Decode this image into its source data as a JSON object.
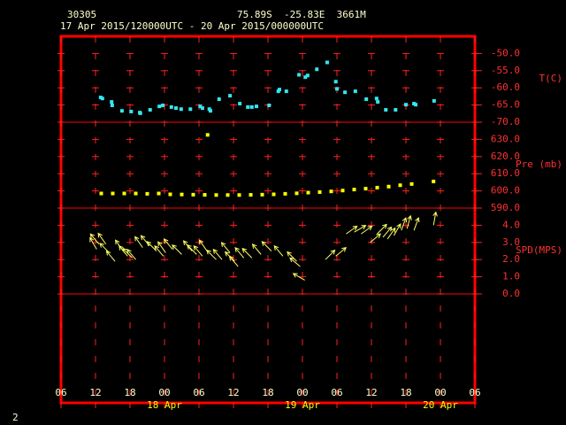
{
  "header": {
    "station": "30305",
    "location": "75.89S  -25.83E  3661M",
    "period": "17 Apr 2015/120000UTC - 20 Apr 2015/000000UTC",
    "page": "2"
  },
  "chart_data": {
    "type": "meteogram",
    "xlim": [
      6,
      78
    ],
    "xticks": [
      {
        "value": 6,
        "label": "06"
      },
      {
        "value": 12,
        "label": "12"
      },
      {
        "value": 18,
        "label": "18"
      },
      {
        "value": 24,
        "label": "00"
      },
      {
        "value": 30,
        "label": "06"
      },
      {
        "value": 36,
        "label": "12"
      },
      {
        "value": 42,
        "label": "18"
      },
      {
        "value": 48,
        "label": "00"
      },
      {
        "value": 54,
        "label": "06"
      },
      {
        "value": 60,
        "label": "12"
      },
      {
        "value": 66,
        "label": "18"
      },
      {
        "value": 72,
        "label": "00"
      },
      {
        "value": 78,
        "label": "06"
      }
    ],
    "date_labels": [
      {
        "value": 24,
        "label": "18 Apr"
      },
      {
        "value": 48,
        "label": "19 Apr"
      },
      {
        "value": 72,
        "label": "20 Apr"
      }
    ],
    "panels": [
      {
        "type": "scatter",
        "label": "T(C)",
        "color": "#33e6f0",
        "ylim": [
          -70,
          -45
        ],
        "yticks": [
          {
            "value": -50,
            "label": "-50.0"
          },
          {
            "value": -55,
            "label": "-55.0"
          },
          {
            "value": -60,
            "label": "-60.0"
          },
          {
            "value": -65,
            "label": "-65.0"
          },
          {
            "value": -70,
            "label": "-70.0"
          }
        ],
        "x": [
          12.9,
          13.2,
          14.8,
          14.9,
          16.6,
          18.2,
          19.7,
          19.8,
          21.5,
          23.1,
          23.7,
          25.2,
          26.0,
          26.9,
          28.5,
          30.2,
          30.6,
          31.8,
          32.0,
          33.5,
          35.4,
          37.1,
          38.5,
          39.2,
          40.0,
          42.2,
          43.8,
          44.0,
          45.2,
          47.4,
          48.5,
          48.9,
          50.5,
          52.3,
          53.8,
          54.0,
          55.4,
          57.2,
          59.1,
          60.9,
          61.1,
          62.5,
          64.2,
          66.0,
          67.4,
          67.7,
          70.9
        ],
        "values": [
          -62.8,
          -63.1,
          -64.1,
          -65.1,
          -66.7,
          -66.9,
          -67.2,
          -67.4,
          -66.4,
          -65.4,
          -65.1,
          -65.6,
          -65.9,
          -66.2,
          -66.2,
          -65.4,
          -65.9,
          -66.2,
          -66.7,
          -63.3,
          -62.3,
          -64.6,
          -65.6,
          -65.6,
          -65.4,
          -65.1,
          -61.0,
          -60.5,
          -61.0,
          -56.2,
          -56.9,
          -56.4,
          -54.6,
          -52.6,
          -58.2,
          -60.3,
          -61.3,
          -61.0,
          -63.3,
          -63.1,
          -64.1,
          -66.4,
          -66.4,
          -64.9,
          -64.6,
          -64.9,
          -63.8
        ]
      },
      {
        "type": "scatter",
        "label": "Pre (mb)",
        "color": "#ffff00",
        "ylim": [
          590,
          640
        ],
        "yticks": [
          {
            "value": 630,
            "label": "630.0"
          },
          {
            "value": 620,
            "label": "620.0"
          },
          {
            "value": 610,
            "label": "610.0"
          },
          {
            "value": 600,
            "label": "600.0"
          },
          {
            "value": 590,
            "label": "590.0"
          }
        ],
        "x": [
          13,
          15,
          17,
          19,
          21,
          23,
          25,
          27,
          29,
          31,
          31.5,
          33,
          35,
          37,
          39,
          41,
          43,
          45,
          47,
          49,
          51,
          53,
          55,
          57,
          59,
          61,
          63,
          65,
          67,
          70.8
        ],
        "values": [
          598.5,
          598.5,
          598.5,
          598.5,
          598.3,
          598.5,
          598.0,
          597.9,
          597.8,
          597.7,
          632.6,
          597.6,
          597.6,
          597.6,
          597.7,
          597.8,
          598.0,
          598.3,
          598.6,
          599.0,
          599.3,
          599.7,
          600.2,
          600.8,
          601.3,
          601.9,
          602.5,
          603.3,
          604.0,
          605.5
        ]
      },
      {
        "type": "vector",
        "label": "SPD(MPS)",
        "color": "#ffff66",
        "ylim": [
          0,
          5
        ],
        "yticks": [
          {
            "value": 4,
            "label": "4.0"
          },
          {
            "value": 3,
            "label": "3.0"
          },
          {
            "value": 2,
            "label": "2.0"
          },
          {
            "value": 1,
            "label": "1.0"
          },
          {
            "value": 0,
            "label": "0.0"
          }
        ],
        "x": [
          12.2,
          12.6,
          13.8,
          14.4,
          15.4,
          16.8,
          17.6,
          18.4,
          19.0,
          20.2,
          21.4,
          22.6,
          23.8,
          24.2,
          25.4,
          27.0,
          28.8,
          29.6,
          30.6,
          31.4,
          33.0,
          34.0,
          35.4,
          36.2,
          36.8,
          37.8,
          39.2,
          40.8,
          42.6,
          44.6,
          47.0,
          47.6,
          48.4,
          52.0,
          53.8,
          55.6,
          57.0,
          58.2,
          59.8,
          61.0,
          62.0,
          62.8,
          63.9,
          65.2,
          66.2,
          67.4,
          70.8
        ],
        "values": [
          2.6,
          2.9,
          2.9,
          2.4,
          1.9,
          2.5,
          2.2,
          2.1,
          2.0,
          2.7,
          2.8,
          2.5,
          2.2,
          2.4,
          2.6,
          2.3,
          2.5,
          2.3,
          2.2,
          2.5,
          2.0,
          2.0,
          2.4,
          1.9,
          1.6,
          2.1,
          2.1,
          2.3,
          2.5,
          2.2,
          1.9,
          1.6,
          0.8,
          2.0,
          2.2,
          3.5,
          3.6,
          3.5,
          3.0,
          3.5,
          3.3,
          3.2,
          3.4,
          3.7,
          3.8,
          3.7,
          4.0
        ],
        "directions": [
          330,
          320,
          325,
          315,
          320,
          325,
          320,
          315,
          320,
          325,
          320,
          315,
          320,
          325,
          320,
          315,
          320,
          315,
          320,
          325,
          315,
          320,
          320,
          315,
          320,
          320,
          315,
          320,
          315,
          320,
          315,
          310,
          300,
          45,
          50,
          55,
          60,
          55,
          50,
          45,
          40,
          35,
          30,
          20,
          15,
          20,
          10
        ]
      }
    ]
  }
}
